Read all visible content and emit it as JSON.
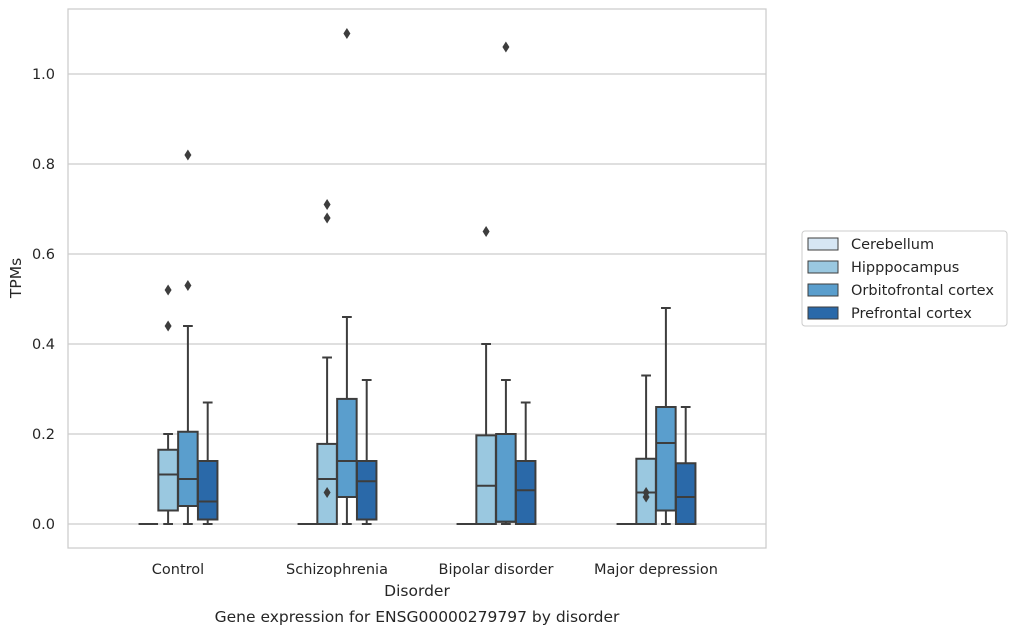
{
  "chart_data": {
    "type": "box",
    "xlabel": "Disorder",
    "ylabel": "TPMs",
    "caption": "Gene expression for ENSG00000279797 by disorder",
    "ylim": [
      -0.05,
      1.15
    ],
    "yticks": [
      0.0,
      0.2,
      0.4,
      0.6,
      0.8,
      1.0
    ],
    "ytick_labels": [
      "0.0",
      "0.2",
      "0.4",
      "0.6",
      "0.8",
      "1.0"
    ],
    "grid": true,
    "legend_placement": "right",
    "categories": [
      "Control",
      "Schizophrenia",
      "Bipolar disorder",
      "Major depression"
    ],
    "series": [
      {
        "name": "Cerebellum",
        "color": "#d6e6f4",
        "boxes": [
          {
            "min": 0,
            "q1": 0,
            "median": 0,
            "q3": 0,
            "max": 0,
            "outliers": []
          },
          {
            "min": 0,
            "q1": 0,
            "median": 0,
            "q3": 0,
            "max": 0,
            "outliers": []
          },
          {
            "min": 0,
            "q1": 0,
            "median": 0,
            "q3": 0,
            "max": 0,
            "outliers": []
          },
          {
            "min": 0,
            "q1": 0,
            "median": 0,
            "q3": 0,
            "max": 0,
            "outliers": []
          }
        ]
      },
      {
        "name": "Hipppocampus",
        "color": "#9ac8e0",
        "boxes": [
          {
            "min": 0,
            "q1": 0.03,
            "median": 0.11,
            "q3": 0.165,
            "max": 0.2,
            "outliers": [
              0.44,
              0.52
            ]
          },
          {
            "min": 0,
            "q1": 0,
            "median": 0.1,
            "q3": 0.178,
            "max": 0.37,
            "outliers": [
              0.07,
              0.68,
              0.71
            ]
          },
          {
            "min": 0,
            "q1": 0,
            "median": 0.085,
            "q3": 0.197,
            "max": 0.4,
            "outliers": [
              0.65
            ]
          },
          {
            "min": 0,
            "q1": 0,
            "median": 0.07,
            "q3": 0.145,
            "max": 0.33,
            "outliers": [
              0.06,
              0.07
            ]
          }
        ]
      },
      {
        "name": "Orbitofrontal cortex",
        "color": "#5a9ecd",
        "boxes": [
          {
            "min": 0,
            "q1": 0.04,
            "median": 0.1,
            "q3": 0.205,
            "max": 0.44,
            "outliers": [
              0.53,
              0.82
            ]
          },
          {
            "min": 0,
            "q1": 0.06,
            "median": 0.14,
            "q3": 0.278,
            "max": 0.46,
            "outliers": [
              1.09
            ]
          },
          {
            "min": 0,
            "q1": 0.005,
            "median": 0.005,
            "q3": 0.2,
            "max": 0.32,
            "outliers": [
              1.06
            ]
          },
          {
            "min": 0,
            "q1": 0.03,
            "median": 0.18,
            "q3": 0.26,
            "max": 0.48,
            "outliers": []
          }
        ]
      },
      {
        "name": "Prefrontal cortex",
        "color": "#2a69a9",
        "boxes": [
          {
            "min": 0,
            "q1": 0.01,
            "median": 0.05,
            "q3": 0.14,
            "max": 0.27,
            "outliers": []
          },
          {
            "min": 0,
            "q1": 0.01,
            "median": 0.095,
            "q3": 0.14,
            "max": 0.32,
            "outliers": []
          },
          {
            "min": 0,
            "q1": 0,
            "median": 0.075,
            "q3": 0.14,
            "max": 0.27,
            "outliers": []
          },
          {
            "min": 0,
            "q1": 0,
            "median": 0.06,
            "q3": 0.135,
            "max": 0.26,
            "outliers": []
          }
        ]
      }
    ]
  }
}
